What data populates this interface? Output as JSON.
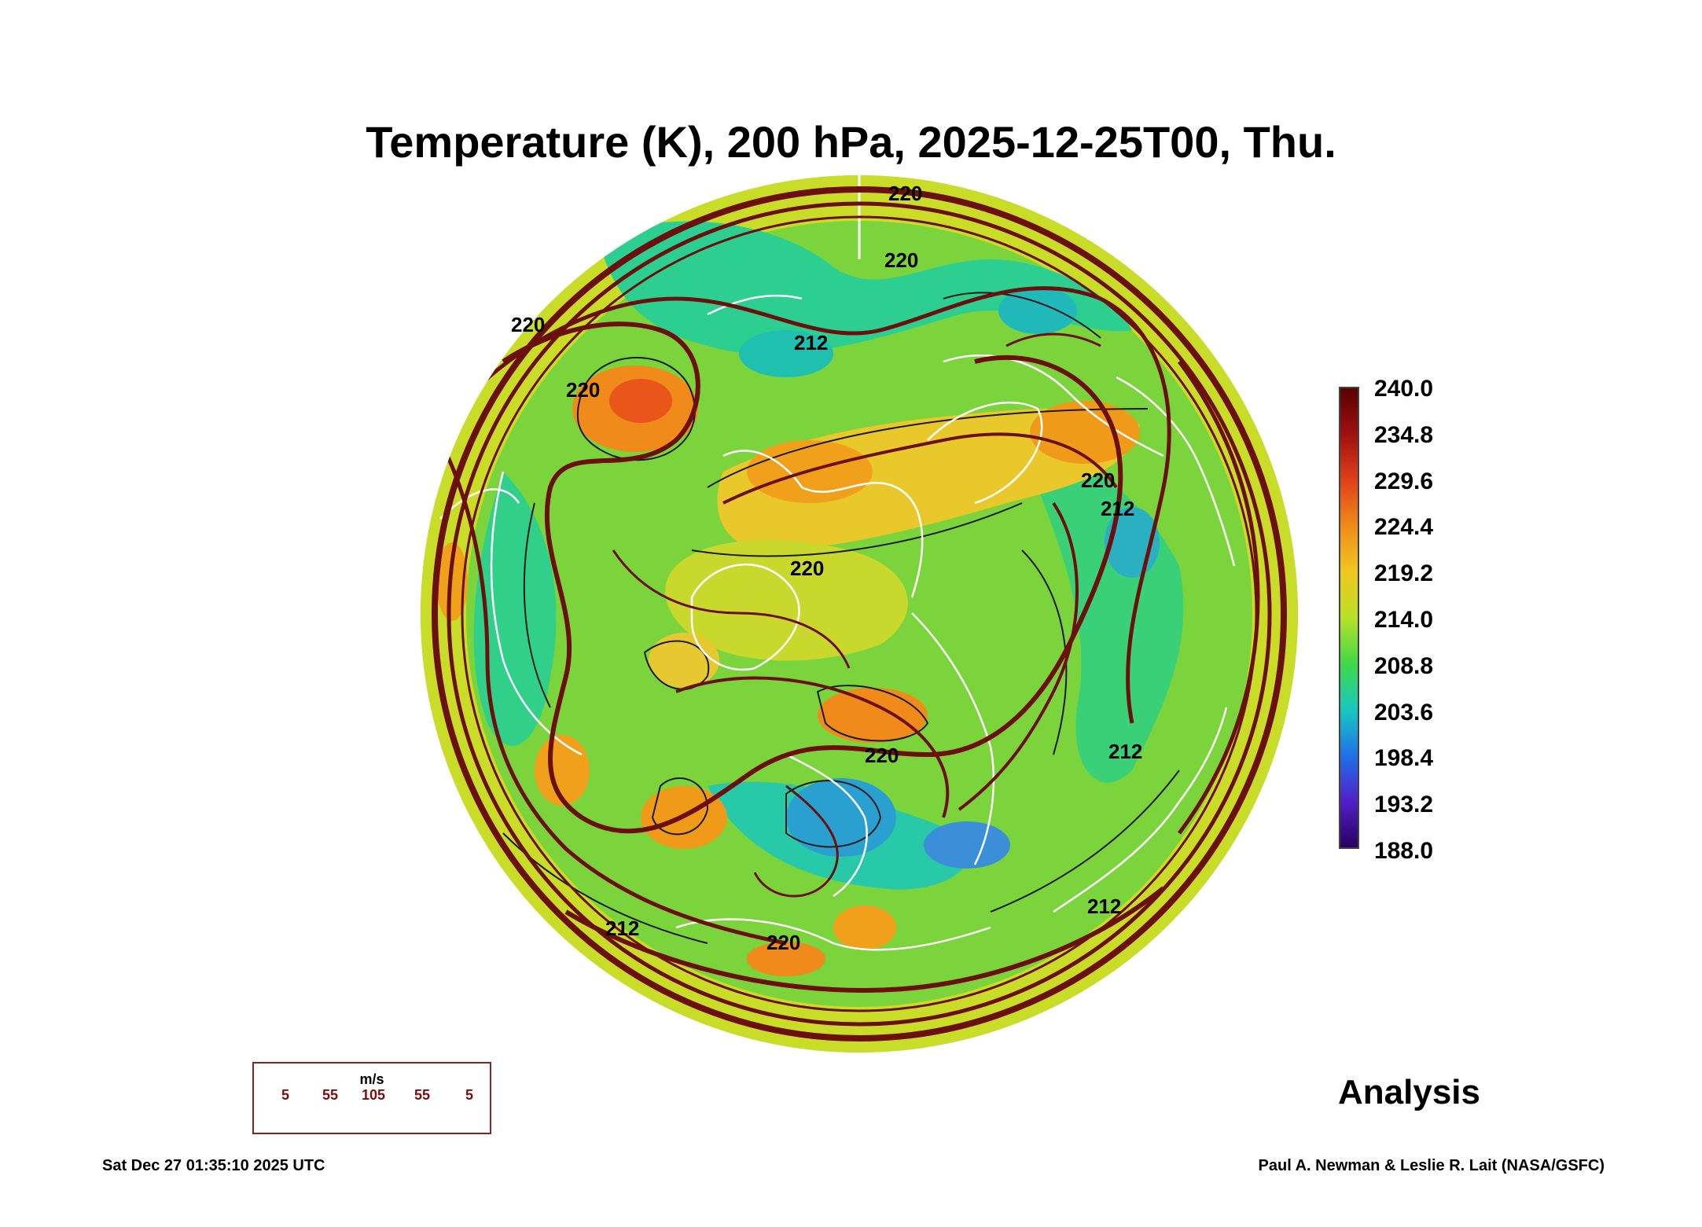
{
  "title": "Temperature (K), 200 hPa, 2025-12-25T00, Thu.",
  "map": {
    "projection": "north-polar orthographic",
    "variable": "temperature",
    "units": "K",
    "level": "200 hPa",
    "contour_labels": [
      "220",
      "220",
      "220",
      "220",
      "220",
      "220",
      "220",
      "220",
      "212",
      "212",
      "212",
      "212",
      "212"
    ],
    "colors": {
      "cold": "#3a7fd0",
      "cool": "#1cc8a0",
      "mild": "#5fd03a",
      "warm": "#c6e02a",
      "hot": "#f59a1a",
      "hottest": "#e8561a",
      "coastline": "#ffffff",
      "contour": "#1a1a1a",
      "streamline": "#6b0f0f"
    }
  },
  "colorbar": {
    "ticks": [
      "240.0",
      "234.8",
      "229.6",
      "224.4",
      "219.2",
      "214.0",
      "208.8",
      "203.6",
      "198.4",
      "193.2",
      "188.0"
    ],
    "range": [
      188.0,
      240.0
    ]
  },
  "wind_legend": {
    "unit": "m/s",
    "values": [
      "5",
      "55",
      "105",
      "55",
      "5"
    ],
    "color": "#7a0d0d"
  },
  "analysis_label": "Analysis",
  "timestamp": "Sat Dec 27 01:35:10 2025 UTC",
  "credit": "Paul A. Newman & Leslie R. Lait (NASA/GSFC)"
}
